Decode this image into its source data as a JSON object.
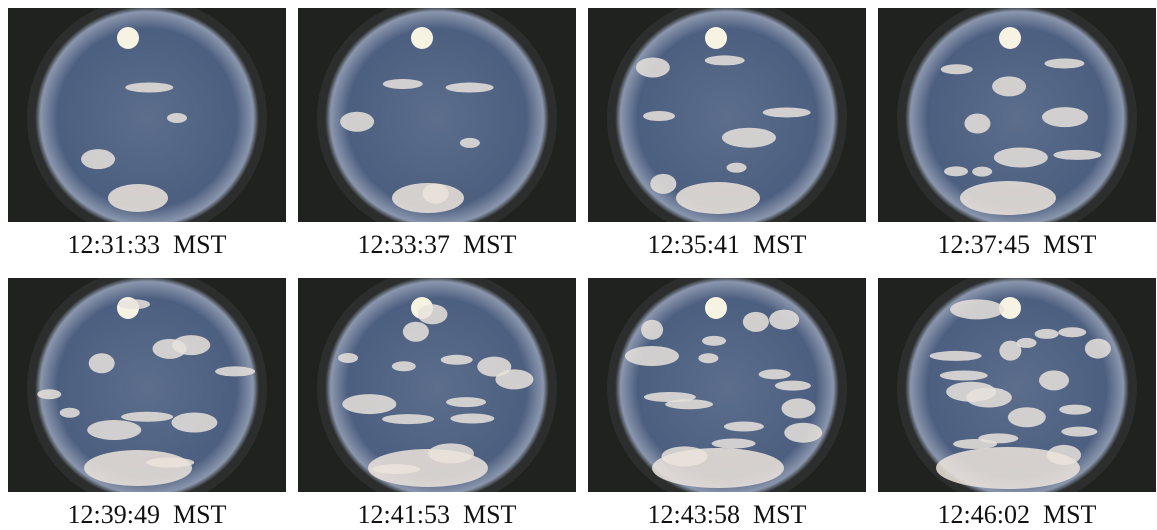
{
  "figure": {
    "captions": [
      "12:31:33  MST",
      "12:33:37  MST",
      "12:35:41  MST",
      "12:37:45  MST",
      "12:39:49  MST",
      "12:41:53  MST",
      "12:43:58  MST",
      "12:46:02  MST"
    ]
  }
}
